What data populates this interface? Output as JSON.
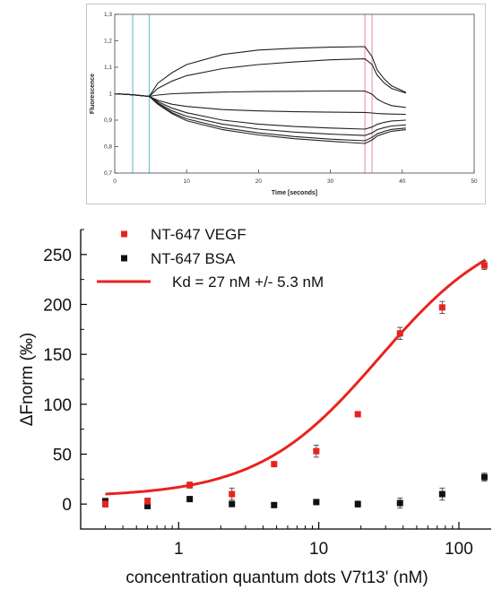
{
  "chart_data": [
    {
      "type": "line",
      "title": "",
      "xlabel": "Time [seconds]",
      "ylabel": "Fluorescence",
      "xlim": [
        0,
        50
      ],
      "ylim": [
        0.7,
        1.3
      ],
      "x_ticks": [
        "0",
        "10",
        "20",
        "30",
        "40",
        "50"
      ],
      "y_ticks": [
        "0,7",
        "0,8",
        "0,9",
        "1",
        "1,1",
        "1,2",
        "1,3"
      ],
      "grid": false,
      "markers": [
        {
          "kind": "cold-region",
          "x": [
            2.5,
            4.8
          ],
          "color": "#7fc7d4"
        },
        {
          "kind": "hot-region",
          "x": [
            34.8,
            35.8
          ],
          "color": "#f4a3b1"
        }
      ],
      "series": [
        {
          "x": [
            0,
            2.5,
            4.8,
            6,
            8,
            10,
            15,
            20,
            25,
            30,
            34.8,
            35.8,
            36.5,
            37.5,
            38.5,
            40.5
          ],
          "values": [
            1.0,
            0.996,
            0.99,
            1.04,
            1.08,
            1.11,
            1.148,
            1.165,
            1.172,
            1.176,
            1.178,
            1.14,
            1.09,
            1.055,
            1.03,
            1.005
          ]
        },
        {
          "x": [
            0,
            2.5,
            4.8,
            6,
            8,
            10,
            15,
            20,
            25,
            30,
            34.8,
            35.8,
            36.5,
            37.5,
            38.5,
            40.5
          ],
          "values": [
            1.0,
            0.996,
            0.99,
            1.02,
            1.048,
            1.068,
            1.095,
            1.11,
            1.12,
            1.128,
            1.132,
            1.11,
            1.07,
            1.04,
            1.02,
            1.002
          ]
        },
        {
          "x": [
            0,
            2.5,
            4.8,
            6,
            8,
            10,
            15,
            20,
            25,
            30,
            34.8,
            35.8,
            36.5,
            37.5,
            38.5,
            40.5
          ],
          "values": [
            1.0,
            0.996,
            0.99,
            0.995,
            1.0,
            1.002,
            1.006,
            1.008,
            1.009,
            1.01,
            1.01,
            0.998,
            0.98,
            0.965,
            0.955,
            0.948
          ]
        },
        {
          "x": [
            0,
            2.5,
            4.8,
            6,
            8,
            10,
            15,
            20,
            25,
            30,
            34.8,
            35.8,
            36.5,
            37.5,
            38.5,
            40.5
          ],
          "values": [
            1.0,
            0.996,
            0.99,
            0.975,
            0.96,
            0.952,
            0.94,
            0.935,
            0.932,
            0.93,
            0.929,
            0.927,
            0.925,
            0.924,
            0.923,
            0.922
          ]
        },
        {
          "x": [
            0,
            2.5,
            4.8,
            6,
            8,
            10,
            15,
            20,
            25,
            30,
            34.8,
            35.8,
            36.5,
            37.5,
            38.5,
            40.5
          ],
          "values": [
            1.0,
            0.996,
            0.99,
            0.97,
            0.945,
            0.928,
            0.9,
            0.885,
            0.876,
            0.87,
            0.866,
            0.874,
            0.884,
            0.892,
            0.897,
            0.9
          ]
        },
        {
          "x": [
            0,
            2.5,
            4.8,
            6,
            8,
            10,
            15,
            20,
            25,
            30,
            34.8,
            35.8,
            36.5,
            37.5,
            38.5,
            40.5
          ],
          "values": [
            1.0,
            0.996,
            0.99,
            0.965,
            0.935,
            0.915,
            0.885,
            0.866,
            0.855,
            0.847,
            0.842,
            0.852,
            0.864,
            0.872,
            0.878,
            0.882
          ]
        },
        {
          "x": [
            0,
            2.5,
            4.8,
            6,
            8,
            10,
            15,
            20,
            25,
            30,
            34.8,
            35.8,
            36.5,
            37.5,
            38.5,
            40.5
          ],
          "values": [
            1.0,
            0.996,
            0.99,
            0.962,
            0.928,
            0.905,
            0.872,
            0.852,
            0.838,
            0.828,
            0.822,
            0.835,
            0.848,
            0.858,
            0.865,
            0.87
          ]
        },
        {
          "x": [
            0,
            2.5,
            4.8,
            6,
            8,
            10,
            15,
            20,
            25,
            30,
            34.8,
            35.8,
            36.5,
            37.5,
            38.5,
            40.5
          ],
          "values": [
            1.0,
            0.996,
            0.99,
            0.96,
            0.924,
            0.898,
            0.864,
            0.844,
            0.83,
            0.82,
            0.812,
            0.825,
            0.84,
            0.85,
            0.858,
            0.864
          ]
        }
      ]
    },
    {
      "type": "scatter",
      "title": "",
      "xlabel": "concentration quantum dots V7t13' (nM)",
      "ylabel": "ΔFnorm (‰)",
      "xscale": "log",
      "xlim": [
        0.2,
        170
      ],
      "ylim": [
        -25,
        275
      ],
      "x_ticks": [
        "1",
        "10",
        "100"
      ],
      "y_ticks": [
        "0",
        "50",
        "100",
        "150",
        "200",
        "250"
      ],
      "grid": false,
      "legend_position": "top-left",
      "series": [
        {
          "name": "NT-647 VEGF",
          "color": "#e8231e",
          "marker": "square",
          "x": [
            0.3,
            0.6,
            1.2,
            2.4,
            4.8,
            9.6,
            19,
            38,
            76,
            152
          ],
          "values": [
            0,
            3,
            19,
            10,
            40,
            53,
            90,
            171,
            197,
            239
          ],
          "errors": [
            3,
            3,
            3,
            6,
            2,
            6,
            2,
            6,
            6,
            4
          ]
        },
        {
          "name": "NT-647 BSA",
          "color": "#111111",
          "marker": "square",
          "x": [
            0.3,
            0.6,
            1.2,
            2.4,
            4.8,
            9.6,
            19,
            38,
            76,
            152
          ],
          "values": [
            3,
            -2,
            5,
            0,
            -1,
            2,
            0,
            1,
            10,
            27
          ],
          "errors": [
            2,
            2,
            2,
            2,
            2,
            2,
            3,
            5,
            6,
            4
          ]
        },
        {
          "name": "Kd = 27 nM +/- 5.3 nM",
          "color": "#e8231e",
          "type": "line",
          "fit": {
            "kd": 27,
            "unbound": 7,
            "bound": 286
          }
        }
      ]
    }
  ]
}
